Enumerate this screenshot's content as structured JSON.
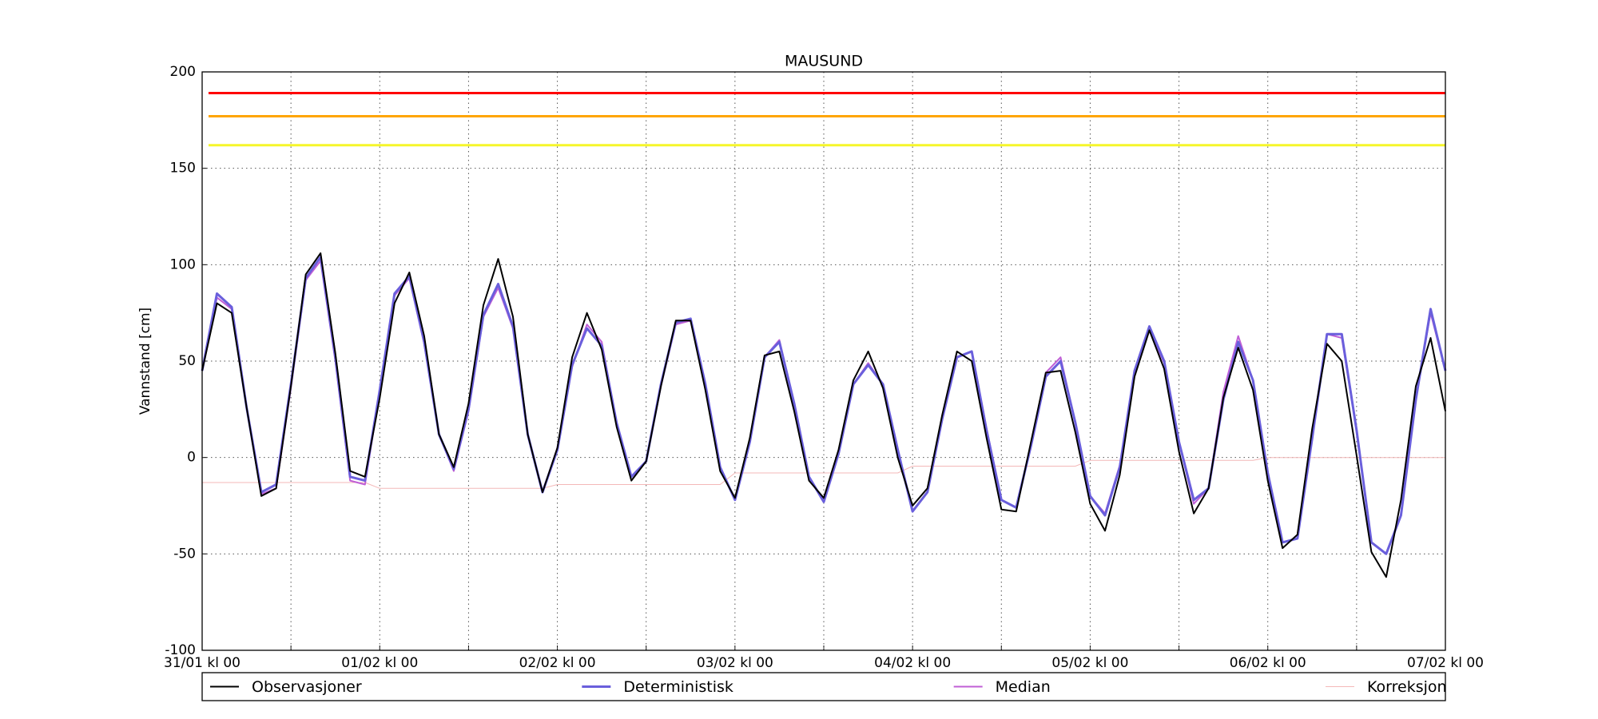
{
  "chart_data": {
    "type": "line",
    "title": "MAUSUND",
    "ylabel": "Vannstand [cm]",
    "x": [
      0,
      2,
      4,
      6,
      8,
      10,
      12,
      14,
      16,
      18,
      20,
      22,
      24,
      26,
      28,
      30,
      32,
      34,
      36,
      38,
      40,
      42,
      44,
      46,
      48,
      50,
      52,
      54,
      56,
      58,
      60,
      62,
      64,
      66,
      68,
      70,
      72,
      74,
      76,
      78,
      80,
      82,
      84,
      86,
      88,
      90,
      92,
      94,
      96,
      98,
      100,
      102,
      104,
      106,
      108,
      110,
      112,
      114,
      116,
      118,
      120,
      122,
      124,
      126,
      128,
      130,
      132,
      134,
      136,
      138,
      140,
      142,
      144,
      146,
      148,
      150,
      152,
      154,
      156,
      158,
      160,
      162,
      164,
      166,
      168
    ],
    "xlim": [
      0,
      168
    ],
    "xticks": [
      {
        "value": 0,
        "label": "31/01 kl 00"
      },
      {
        "value": 12,
        "label": null
      },
      {
        "value": 24,
        "label": "01/02 kl 00"
      },
      {
        "value": 36,
        "label": null
      },
      {
        "value": 48,
        "label": "02/02 kl 00"
      },
      {
        "value": 60,
        "label": null
      },
      {
        "value": 72,
        "label": "03/02 kl 00"
      },
      {
        "value": 84,
        "label": null
      },
      {
        "value": 96,
        "label": "04/02 kl 00"
      },
      {
        "value": 108,
        "label": null
      },
      {
        "value": 120,
        "label": "05/02 kl 00"
      },
      {
        "value": 132,
        "label": null
      },
      {
        "value": 144,
        "label": "06/02 kl 00"
      },
      {
        "value": 156,
        "label": null
      },
      {
        "value": 168,
        "label": "07/02 kl 00"
      }
    ],
    "ylim": [
      -100,
      200
    ],
    "yticks": [
      -100,
      -50,
      0,
      50,
      100,
      150,
      200
    ],
    "grid": true,
    "legend": "below",
    "thresholds": [
      {
        "value": 189,
        "color": "#ff0000"
      },
      {
        "value": 177,
        "color": "#ffa500"
      },
      {
        "value": 162,
        "color": "#f5f52a"
      }
    ],
    "series": [
      {
        "name": "Observasjoner",
        "color": "#000000",
        "width": 2,
        "values": [
          45,
          80,
          75,
          26,
          -20,
          -16,
          37,
          95,
          106,
          54,
          -7,
          -10,
          31,
          80,
          96,
          63,
          12,
          -5,
          28,
          79,
          103,
          73,
          12,
          -18,
          5,
          52,
          75,
          56,
          16,
          -12,
          -2,
          37,
          71,
          71,
          35,
          -7,
          -21,
          10,
          53,
          55,
          24,
          -12,
          -21,
          4,
          40,
          55,
          36,
          0,
          -25,
          -16,
          22,
          55,
          50,
          10,
          -27,
          -28,
          8,
          44,
          45,
          13,
          -24,
          -38,
          -9,
          42,
          66,
          46,
          3,
          -29,
          -16,
          31,
          57,
          35,
          -12,
          -47,
          -40,
          15,
          59,
          50,
          1,
          -49,
          -62,
          -22,
          37,
          62,
          24
        ]
      },
      {
        "name": "Deterministisk",
        "color": "#6a5fdc",
        "width": 3,
        "values": [
          45,
          85,
          78,
          26,
          -18,
          -14,
          38,
          93,
          104,
          52,
          -10,
          -12,
          35,
          85,
          94,
          60,
          12,
          -6,
          25,
          74,
          90,
          68,
          12,
          -18,
          4,
          48,
          67,
          58,
          18,
          -10,
          -2,
          38,
          70,
          72,
          38,
          -5,
          -22,
          8,
          52,
          60,
          28,
          -10,
          -23,
          2,
          38,
          48,
          38,
          4,
          -28,
          -18,
          20,
          52,
          55,
          14,
          -22,
          -26,
          6,
          42,
          50,
          18,
          -20,
          -30,
          -5,
          45,
          68,
          50,
          8,
          -22,
          -16,
          30,
          60,
          40,
          -8,
          -44,
          -42,
          10,
          64,
          64,
          14,
          -44,
          -50,
          -30,
          30,
          77,
          45
        ]
      },
      {
        "name": "Median",
        "color": "#c05fd6",
        "width": 2,
        "values": [
          45,
          83,
          77,
          26,
          -19,
          -16,
          36,
          92,
          102,
          50,
          -12,
          -14,
          34,
          84,
          93,
          59,
          12,
          -7,
          24,
          73,
          88,
          67,
          12,
          -18,
          5,
          47,
          69,
          60,
          18,
          -10,
          -2,
          37,
          69,
          71,
          38,
          -5,
          -22,
          8,
          52,
          61,
          28,
          -10,
          -23,
          2,
          38,
          49,
          38,
          4,
          -28,
          -18,
          20,
          52,
          55,
          15,
          -22,
          -26,
          7,
          44,
          52,
          18,
          -20,
          -29,
          -4,
          44,
          66,
          49,
          8,
          -24,
          -16,
          34,
          63,
          40,
          -8,
          -44,
          -42,
          11,
          64,
          62,
          14,
          -44,
          -50,
          -30,
          31,
          75,
          45
        ]
      },
      {
        "name": "Korreksjon",
        "color": "#f4b8b8",
        "width": 1,
        "values": [
          -13,
          -13,
          -13,
          -13,
          -13,
          -13,
          -13,
          -13,
          -13,
          -13,
          -13,
          -13,
          -16,
          -16,
          -16,
          -16,
          -16,
          -16,
          -16,
          -16,
          -16,
          -16,
          -16,
          -16,
          -14,
          -14,
          -14,
          -14,
          -14,
          -14,
          -14,
          -14,
          -14,
          -14,
          -14,
          -14,
          -8,
          -8,
          -8,
          -8,
          -8,
          -8,
          -8,
          -8,
          -8,
          -8,
          -8,
          -8,
          -4.5,
          -4.5,
          -4.5,
          -4.5,
          -4.5,
          -4.5,
          -4.5,
          -4.5,
          -4.5,
          -4.5,
          -4.5,
          -4.5,
          -1.5,
          -1.5,
          -1.5,
          -1.5,
          -1.5,
          -1.5,
          -1.5,
          -1.5,
          -1.5,
          -1.5,
          -1.5,
          -1.5,
          0,
          0,
          0,
          0,
          0,
          0,
          0,
          0,
          0,
          0,
          0,
          0,
          0
        ]
      }
    ]
  }
}
